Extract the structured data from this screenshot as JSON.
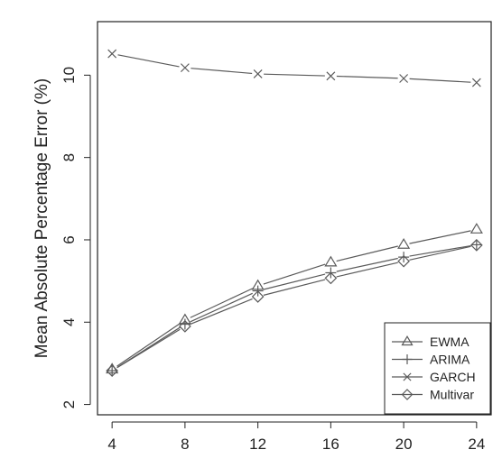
{
  "chart_data": {
    "type": "line",
    "title": "",
    "xlabel": "",
    "ylabel": "Mean Absolute Percentage Error (%)",
    "x": [
      4,
      8,
      12,
      16,
      20,
      24
    ],
    "xticks": [
      "4",
      "8",
      "12",
      "16",
      "20",
      "24"
    ],
    "yticks": [
      "2",
      "4",
      "6",
      "8",
      "10"
    ],
    "xlim": [
      3.2,
      24.8
    ],
    "ylim": [
      1.75,
      11.3
    ],
    "grid": false,
    "legend_position": "bottom-right",
    "series": [
      {
        "name": "EWMA",
        "marker": "triangle",
        "values": [
          2.85,
          4.05,
          4.88,
          5.45,
          5.88,
          6.25
        ]
      },
      {
        "name": "ARIMA",
        "marker": "plus",
        "values": [
          2.82,
          3.95,
          4.76,
          5.2,
          5.58,
          5.88
        ]
      },
      {
        "name": "GARCH",
        "marker": "x",
        "values": [
          10.52,
          10.18,
          10.03,
          9.98,
          9.92,
          9.82
        ]
      },
      {
        "name": "Multivar",
        "marker": "diamond",
        "values": [
          2.82,
          3.9,
          4.62,
          5.07,
          5.48,
          5.87
        ]
      }
    ],
    "colors": {
      "line": "#5a5a5a",
      "axis": "#222222",
      "background": "#ffffff"
    }
  }
}
